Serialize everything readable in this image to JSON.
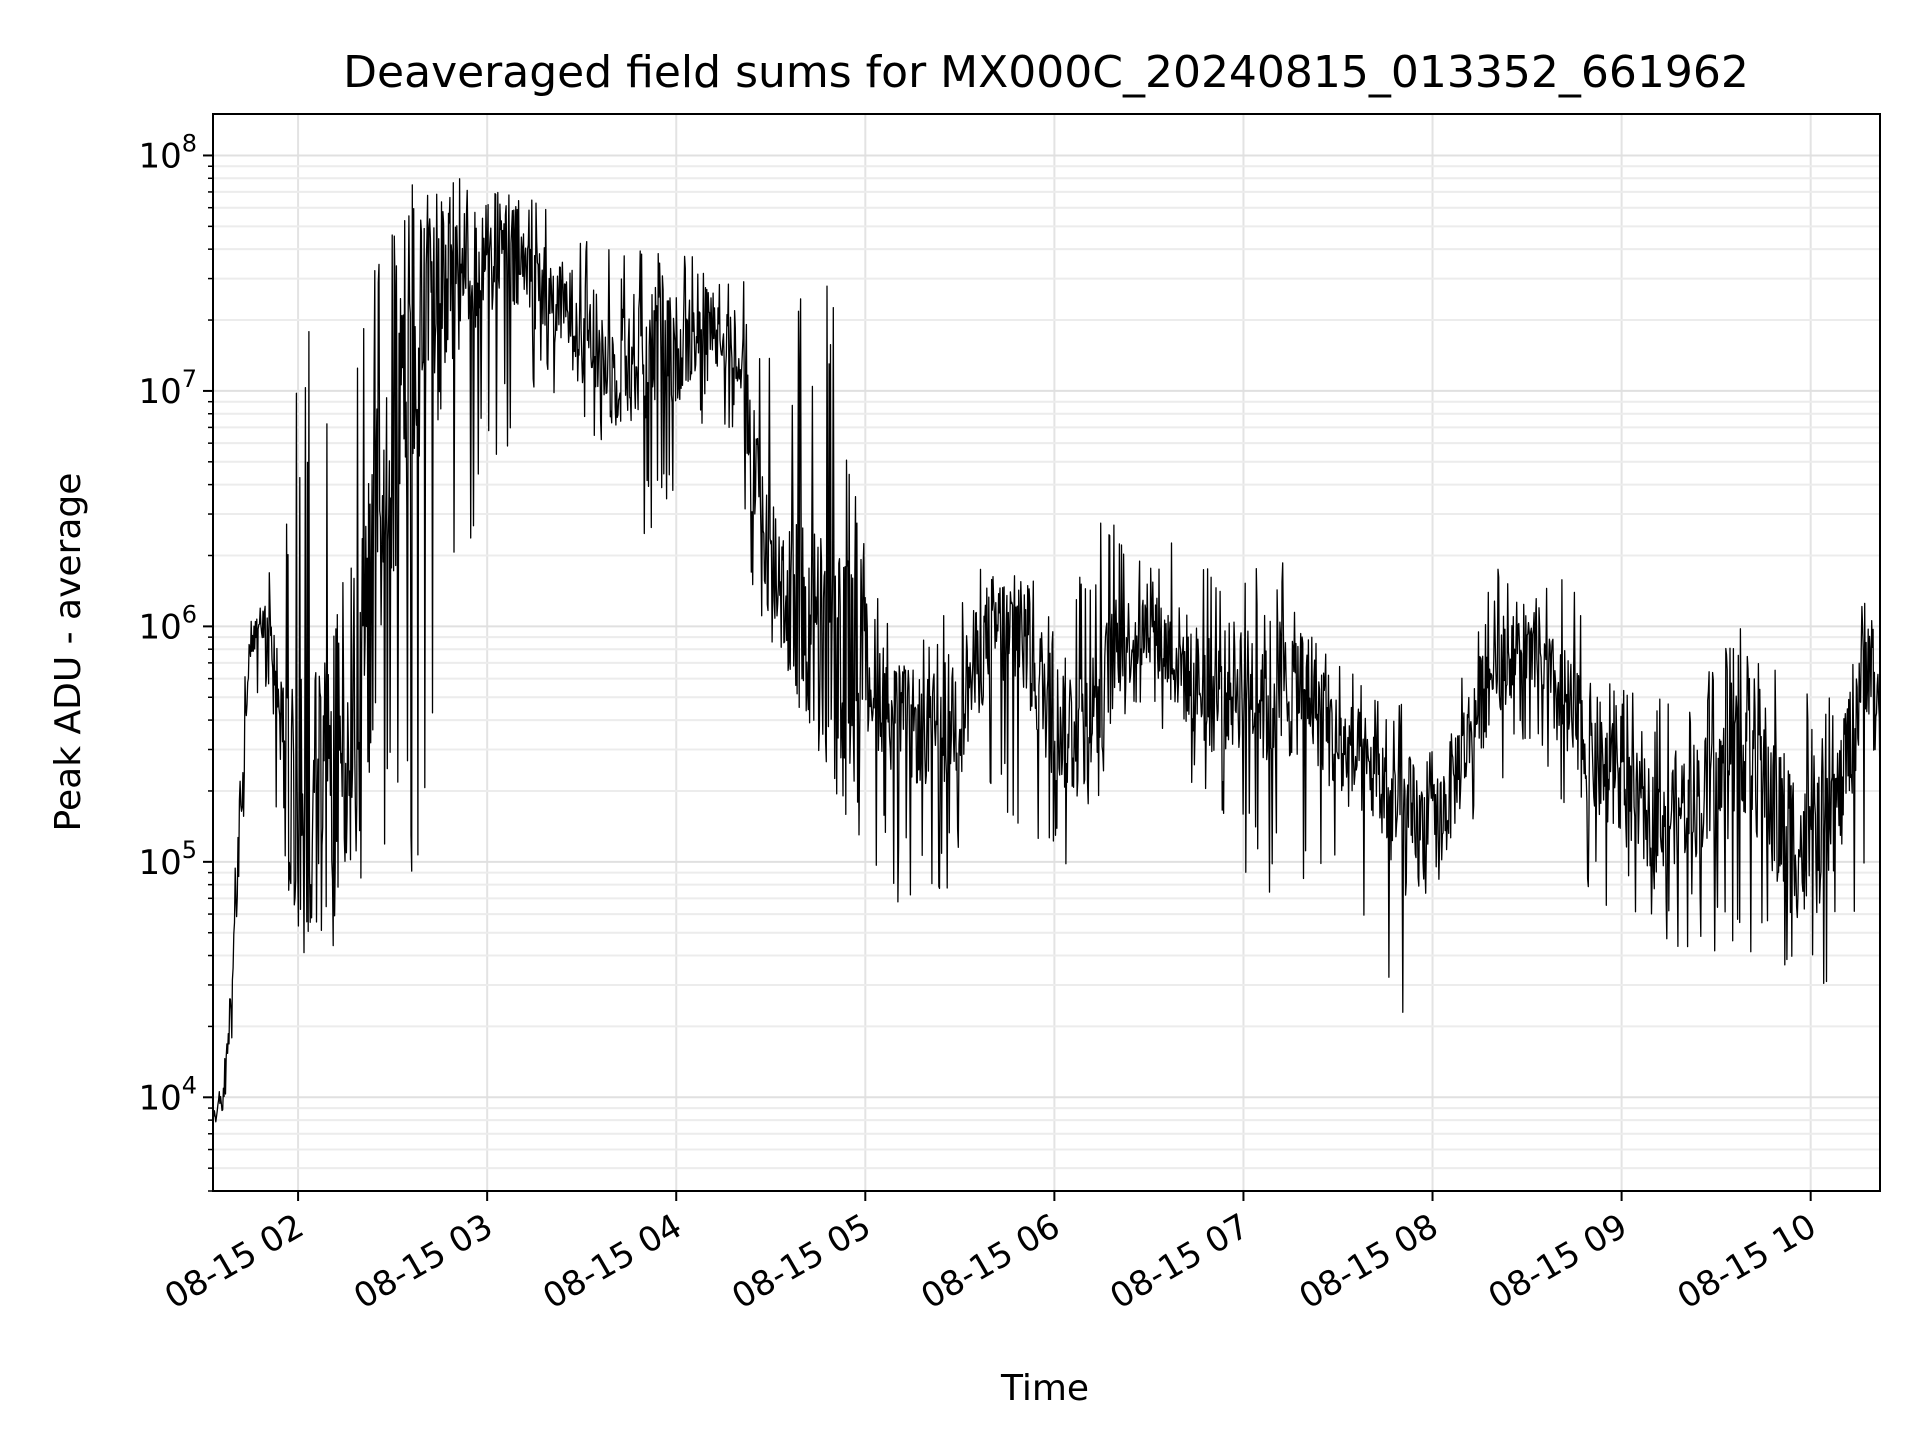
{
  "chart_data": {
    "type": "line",
    "title": "Deaveraged field sums for MX000C_20240815_013352_661962",
    "xlabel": "Time",
    "ylabel": "Peak ADU - average",
    "yscale": "log",
    "ylim": [
      4000,
      150000000
    ],
    "xlim": [
      "2024-08-15 01:33",
      "2024-08-15 10:22"
    ],
    "grid": true,
    "x_ticks": [
      {
        "value": "2024-08-15 02:00",
        "label": "08-15 02"
      },
      {
        "value": "2024-08-15 03:00",
        "label": "08-15 03"
      },
      {
        "value": "2024-08-15 04:00",
        "label": "08-15 04"
      },
      {
        "value": "2024-08-15 05:00",
        "label": "08-15 05"
      },
      {
        "value": "2024-08-15 06:00",
        "label": "08-15 06"
      },
      {
        "value": "2024-08-15 07:00",
        "label": "08-15 07"
      },
      {
        "value": "2024-08-15 08:00",
        "label": "08-15 08"
      },
      {
        "value": "2024-08-15 09:00",
        "label": "08-15 09"
      },
      {
        "value": "2024-08-15 10:00",
        "label": "08-15 10"
      }
    ],
    "y_ticks": [
      {
        "value": 10000,
        "base": "10",
        "exp": "4"
      },
      {
        "value": 100000,
        "base": "10",
        "exp": "5"
      },
      {
        "value": 1000000,
        "base": "10",
        "exp": "6"
      },
      {
        "value": 10000000,
        "base": "10",
        "exp": "7"
      },
      {
        "value": 100000000,
        "base": "10",
        "exp": "8"
      }
    ],
    "series": [
      {
        "color": "#000000",
        "envelope": {
          "x": [
            "2024-08-15 01:33",
            "2024-08-15 01:36",
            "2024-08-15 01:39",
            "2024-08-15 01:42",
            "2024-08-15 01:45",
            "2024-08-15 01:48",
            "2024-08-15 01:52",
            "2024-08-15 01:56",
            "2024-08-15 02:00",
            "2024-08-15 02:05",
            "2024-08-15 02:10",
            "2024-08-15 02:15",
            "2024-08-15 02:20",
            "2024-08-15 02:25",
            "2024-08-15 02:30",
            "2024-08-15 02:35",
            "2024-08-15 02:40",
            "2024-08-15 02:45",
            "2024-08-15 02:50",
            "2024-08-15 03:00",
            "2024-08-15 03:10",
            "2024-08-15 03:20",
            "2024-08-15 03:30",
            "2024-08-15 03:40",
            "2024-08-15 03:50",
            "2024-08-15 04:00",
            "2024-08-15 04:10",
            "2024-08-15 04:20",
            "2024-08-15 04:25",
            "2024-08-15 04:30",
            "2024-08-15 04:40",
            "2024-08-15 04:50",
            "2024-08-15 05:00",
            "2024-08-15 05:10",
            "2024-08-15 05:20",
            "2024-08-15 05:30",
            "2024-08-15 05:40",
            "2024-08-15 05:50",
            "2024-08-15 06:00",
            "2024-08-15 06:10",
            "2024-08-15 06:20",
            "2024-08-15 06:30",
            "2024-08-15 06:40",
            "2024-08-15 06:50",
            "2024-08-15 07:00",
            "2024-08-15 07:10",
            "2024-08-15 07:20",
            "2024-08-15 07:30",
            "2024-08-15 07:40",
            "2024-08-15 07:50",
            "2024-08-15 08:00",
            "2024-08-15 08:10",
            "2024-08-15 08:20",
            "2024-08-15 08:30",
            "2024-08-15 08:40",
            "2024-08-15 08:50",
            "2024-08-15 09:00",
            "2024-08-15 09:10",
            "2024-08-15 09:20",
            "2024-08-15 09:30",
            "2024-08-15 09:40",
            "2024-08-15 09:50",
            "2024-08-15 10:00",
            "2024-08-15 10:10",
            "2024-08-15 10:18",
            "2024-08-15 10:22"
          ],
          "median": [
            8000,
            9500,
            30000,
            200000,
            900000,
            1000000,
            600000,
            200000,
            150000,
            150000,
            250000,
            350000,
            500000,
            2000000,
            8000000,
            15000000,
            20000000,
            25000000,
            30000000,
            40000000,
            35000000,
            25000000,
            20000000,
            12000000,
            15000000,
            15000000,
            20000000,
            15000000,
            4000000,
            2000000,
            1000000,
            800000,
            700000,
            400000,
            350000,
            450000,
            1000000,
            900000,
            400000,
            350000,
            800000,
            1000000,
            700000,
            500000,
            600000,
            500000,
            600000,
            300000,
            250000,
            150000,
            120000,
            300000,
            700000,
            800000,
            500000,
            300000,
            200000,
            150000,
            180000,
            200000,
            350000,
            150000,
            100000,
            200000,
            900000,
            300000
          ],
          "high": [
            9000,
            12000,
            60000,
            500000,
            1200000,
            1300000,
            2000000,
            4000000,
            20000000,
            40000000,
            45000000,
            40000000,
            35000000,
            40000000,
            60000000,
            90000000,
            70000000,
            75000000,
            80000000,
            80000000,
            70000000,
            70000000,
            60000000,
            50000000,
            45000000,
            45000000,
            40000000,
            35000000,
            20000000,
            15000000,
            40000000,
            45000000,
            2000000,
            800000,
            900000,
            1500000,
            2000000,
            1800000,
            1200000,
            2800000,
            3000000,
            1800000,
            3200000,
            1800000,
            2000000,
            2200000,
            1500000,
            800000,
            500000,
            500000,
            400000,
            700000,
            2000000,
            1200000,
            1800000,
            1100000,
            600000,
            500000,
            500000,
            700000,
            1300000,
            1000000,
            500000,
            500000,
            1200000,
            900000
          ],
          "low": [
            6500,
            7000,
            15000,
            100000,
            500000,
            300000,
            150000,
            60000,
            50000,
            50000,
            40000,
            40000,
            50000,
            60000,
            45000,
            80000,
            100000,
            400000,
            1000000,
            5000000,
            6000000,
            10000000,
            8000000,
            4000000,
            2000000,
            4000000,
            8000000,
            6000000,
            1000000,
            700000,
            400000,
            200000,
            100000,
            60000,
            80000,
            70000,
            200000,
            100000,
            80000,
            90000,
            300000,
            400000,
            250000,
            150000,
            90000,
            60000,
            80000,
            70000,
            50000,
            18000,
            30000,
            80000,
            200000,
            300000,
            150000,
            60000,
            55000,
            50000,
            40000,
            40000,
            40000,
            25000,
            25000,
            35000,
            50000,
            60000
          ]
        }
      }
    ]
  }
}
